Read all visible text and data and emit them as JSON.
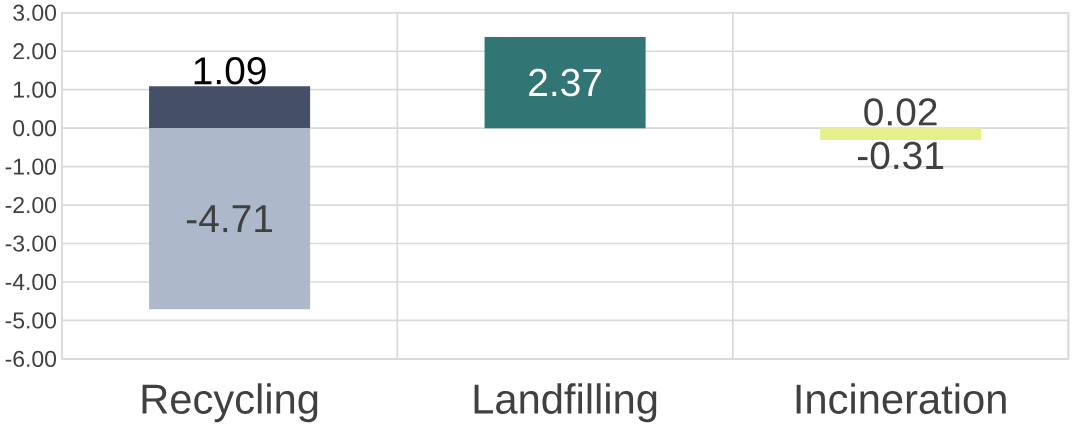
{
  "chart_data": {
    "type": "bar",
    "stacked": true,
    "categories": [
      "Recycling",
      "Landfilling",
      "Incineration"
    ],
    "series": [
      {
        "colors": [
          "#435068",
          "#317575",
          "#e6f08a"
        ],
        "values": [
          1.09,
          2.37,
          0.02
        ]
      },
      {
        "colors": [
          "#adb9ca",
          "#317575",
          "#e6f08a"
        ],
        "values": [
          -4.71,
          null,
          -0.31
        ]
      }
    ],
    "ylim": [
      -6,
      3
    ],
    "yticks": [
      {
        "value": -6,
        "label": "-6.00"
      },
      {
        "value": -5,
        "label": "-5.00"
      },
      {
        "value": -4,
        "label": "-4.00"
      },
      {
        "value": -3,
        "label": "-3.00"
      },
      {
        "value": -2,
        "label": "-2.00"
      },
      {
        "value": -1,
        "label": "-1.00"
      },
      {
        "value": 0,
        "label": "0.00"
      },
      {
        "value": 1,
        "label": "1.00"
      },
      {
        "value": 2,
        "label": "2.00"
      },
      {
        "value": 3,
        "label": "3.00"
      }
    ],
    "grid": true,
    "data_labels": true
  }
}
